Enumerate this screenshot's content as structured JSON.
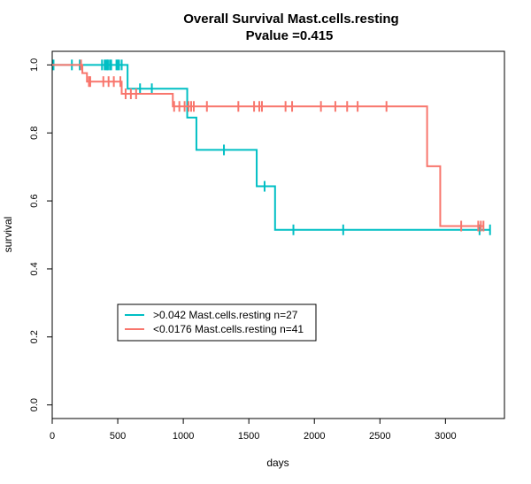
{
  "chart_data": {
    "type": "line",
    "title": "Overall Survival Mast.cells.resting",
    "subtitle": "Pvalue =0.415",
    "xlabel": "days",
    "ylabel": "survival",
    "xlim": [
      0,
      3450
    ],
    "ylim": [
      -0.04,
      1.04
    ],
    "xticks": [
      0,
      500,
      1000,
      1500,
      2000,
      2500,
      3000
    ],
    "yticks": [
      0.0,
      0.2,
      0.4,
      0.6,
      0.8,
      1.0
    ],
    "xtick_labels": [
      "0",
      "500",
      "1000",
      "1500",
      "2000",
      "2500",
      "3000"
    ],
    "ytick_labels": [
      "0.0",
      "0.2",
      "0.4",
      "0.6",
      "0.8",
      "1.0"
    ],
    "legend_position": "lower-left",
    "series": [
      {
        "name": ">0.042 Mast.cells.resting n=27",
        "color": "#00bfc4",
        "steps": [
          [
            0,
            1.0
          ],
          [
            575,
            0.93
          ],
          [
            1030,
            0.845
          ],
          [
            1100,
            0.75
          ],
          [
            1560,
            0.643
          ],
          [
            1700,
            0.515
          ],
          [
            3340,
            0.515
          ]
        ],
        "censor_times": [
          10,
          150,
          210,
          380,
          400,
          410,
          420,
          425,
          440,
          450,
          490,
          500,
          510,
          530,
          670,
          760,
          1310,
          1620,
          1840,
          2220,
          3260,
          3340
        ],
        "censor_values": [
          1.0,
          1.0,
          1.0,
          1.0,
          1.0,
          1.0,
          1.0,
          1.0,
          1.0,
          1.0,
          1.0,
          1.0,
          1.0,
          1.0,
          0.93,
          0.93,
          0.75,
          0.643,
          0.515,
          0.515,
          0.515,
          0.515
        ]
      },
      {
        "name": "<0.0176 Mast.cells.resting n=41",
        "color": "#f8766d",
        "steps": [
          [
            0,
            1.0
          ],
          [
            230,
            0.976
          ],
          [
            265,
            0.951
          ],
          [
            530,
            0.915
          ],
          [
            920,
            0.878
          ],
          [
            2860,
            0.702
          ],
          [
            2960,
            0.526
          ],
          [
            3290,
            0.526
          ]
        ],
        "censor_times": [
          220,
          280,
          290,
          390,
          430,
          470,
          520,
          560,
          600,
          640,
          930,
          970,
          1010,
          1040,
          1060,
          1080,
          1180,
          1420,
          1540,
          1580,
          1600,
          1780,
          1830,
          2050,
          2160,
          2250,
          2330,
          2550,
          3120,
          3250,
          3270,
          3290
        ],
        "censor_values": [
          1.0,
          0.951,
          0.951,
          0.951,
          0.951,
          0.951,
          0.951,
          0.915,
          0.915,
          0.915,
          0.878,
          0.878,
          0.878,
          0.878,
          0.878,
          0.878,
          0.878,
          0.878,
          0.878,
          0.878,
          0.878,
          0.878,
          0.878,
          0.878,
          0.878,
          0.878,
          0.878,
          0.878,
          0.526,
          0.526,
          0.526,
          0.526
        ]
      }
    ]
  }
}
